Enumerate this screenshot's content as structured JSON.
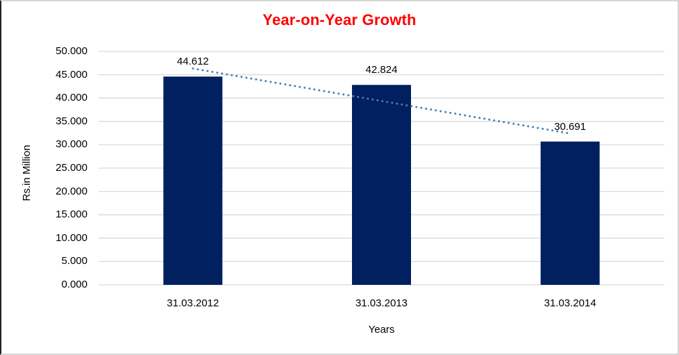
{
  "chart_data": {
    "type": "bar",
    "title": "Year-on-Year Growth",
    "title_color": "#ff0000",
    "xlabel": "Years",
    "ylabel": "Rs.in Million",
    "categories": [
      "31.03.2012",
      "31.03.2013",
      "31.03.2014"
    ],
    "values": [
      44.612,
      42.824,
      30.691
    ],
    "value_labels": [
      "44.612",
      "42.824",
      "30.691"
    ],
    "y_ticks_top_to_bottom": [
      "50.000",
      "45.000",
      "40.000",
      "35.000",
      "30.000",
      "25.000",
      "20.000",
      "15.000",
      "10.000",
      "5.000",
      "0.000"
    ],
    "ylim": [
      0,
      50
    ],
    "grid": true,
    "legend": false,
    "bar_color": "#002060",
    "gridline_color": "#d9d9d9",
    "trendline": {
      "style": "dotted",
      "color": "#4a7ebb",
      "start_value": 46.34,
      "end_value": 32.42
    }
  }
}
